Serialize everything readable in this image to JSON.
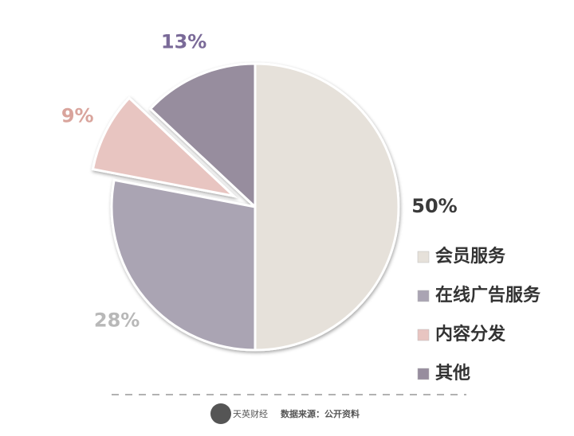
{
  "chart_data": {
    "type": "pie",
    "categories": [
      "会员服务",
      "在线广告服务",
      "内容分发",
      "其他"
    ],
    "values": [
      50,
      28,
      9,
      13
    ],
    "value_labels": [
      "50%",
      "28%",
      "9%",
      "13%"
    ],
    "colors": [
      "#e6e1da",
      "#aaa4b3",
      "#e8c5c1",
      "#978d9e"
    ],
    "explode": [
      false,
      false,
      true,
      false
    ],
    "legend": "right"
  },
  "footer": {
    "brand": "天英财经",
    "source": "数据来源：公开资料"
  }
}
